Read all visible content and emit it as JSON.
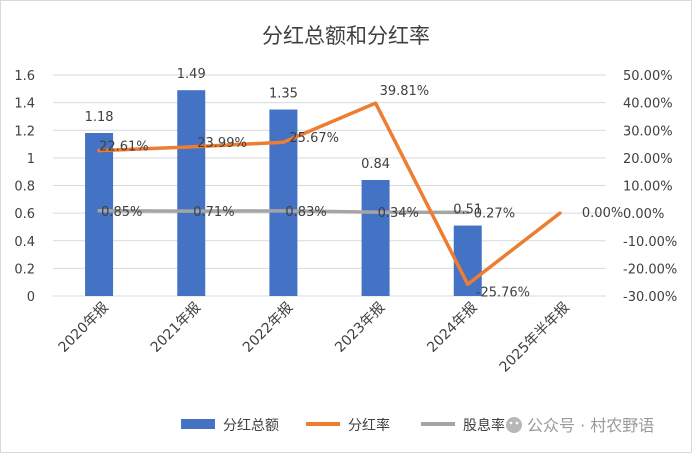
{
  "chart_data": {
    "type": "bar+line",
    "title": "分红总额和分红率",
    "categories": [
      "2020年报",
      "2021年报",
      "2022年报",
      "2023年报",
      "2024年报",
      "2025年半年报"
    ],
    "series": [
      {
        "name": "分红总额",
        "kind": "bar",
        "axis": "left",
        "values": [
          1.18,
          1.49,
          1.35,
          0.84,
          0.51,
          null
        ],
        "labels": [
          "1.18",
          "1.49",
          "1.35",
          "0.84",
          "0.51",
          ""
        ]
      },
      {
        "name": "分红率",
        "kind": "line",
        "axis": "right",
        "values": [
          22.61,
          23.99,
          25.67,
          39.81,
          -25.76,
          0.0
        ],
        "labels": [
          "22.61%",
          "23.99%",
          "25.67%",
          "39.81%",
          "-25.76%",
          "0.00%"
        ]
      },
      {
        "name": "股息率",
        "kind": "line",
        "axis": "right",
        "values": [
          0.85,
          0.71,
          0.83,
          0.34,
          0.27,
          null
        ],
        "labels": [
          "0.85%",
          "0.71%",
          "0.83%",
          "0.34%",
          "0.27%",
          ""
        ]
      }
    ],
    "y_left": {
      "min": 0,
      "max": 1.6,
      "step": 0.2,
      "ticks": [
        "0",
        "0.2",
        "0.4",
        "0.6",
        "0.8",
        "1",
        "1.2",
        "1.4",
        "1.6"
      ]
    },
    "y_right": {
      "min": -30,
      "max": 50,
      "step": 10,
      "ticks": [
        "-30.00%",
        "-20.00%",
        "-10.00%",
        "0.00%",
        "10.00%",
        "20.00%",
        "30.00%",
        "40.00%",
        "50.00%"
      ]
    },
    "legend_position": "bottom",
    "colors": {
      "bar": "#4472c4",
      "rate": "#ed7d31",
      "yield": "#a5a5a5",
      "grid": "#d9d9d9",
      "text": "#404040"
    }
  },
  "watermark": "公众号 · 村农野语"
}
